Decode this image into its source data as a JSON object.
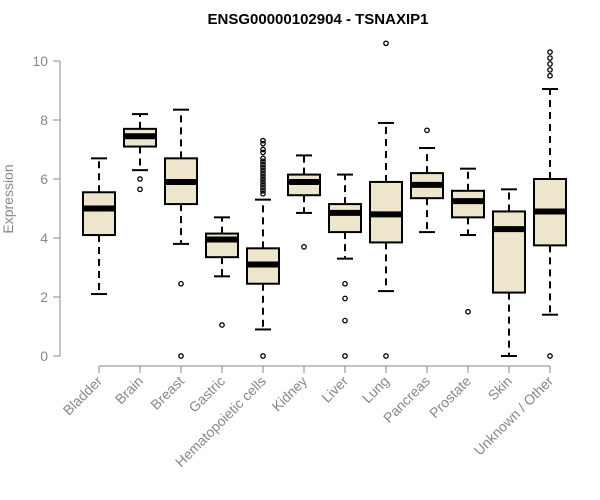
{
  "chart_data": {
    "type": "boxplot",
    "title": "ENSG00000102904 - TSNAXIP1",
    "xlabel": "",
    "ylabel": "Expression",
    "ylim": [
      0,
      10.5
    ],
    "yticks": [
      0,
      2,
      4,
      6,
      8,
      10
    ],
    "box_fill": "#ede6cd",
    "categories": [
      "Bladder",
      "Brain",
      "Breast",
      "Gastric",
      "Hematopoietic cells",
      "Kidney",
      "Liver",
      "Lung",
      "Pancreas",
      "Prostate",
      "Skin",
      "Unknown / Other"
    ],
    "boxes": [
      {
        "min": 2.1,
        "q1": 4.1,
        "median": 5.0,
        "q3": 5.55,
        "max": 6.7,
        "outliers": []
      },
      {
        "min": 6.3,
        "q1": 7.1,
        "median": 7.45,
        "q3": 7.7,
        "max": 8.2,
        "outliers": [
          6.0,
          5.65
        ]
      },
      {
        "min": 3.8,
        "q1": 5.15,
        "median": 5.9,
        "q3": 6.7,
        "max": 8.35,
        "outliers": [
          2.45,
          0.0
        ]
      },
      {
        "min": 2.7,
        "q1": 3.35,
        "median": 3.95,
        "q3": 4.15,
        "max": 4.7,
        "outliers": [
          1.05
        ]
      },
      {
        "min": 0.9,
        "q1": 2.45,
        "median": 3.1,
        "q3": 3.65,
        "max": 5.3,
        "outliers": [
          7.3,
          7.2,
          7.0,
          6.9,
          6.7,
          6.6,
          6.5,
          6.4,
          6.3,
          6.2,
          6.1,
          6.0,
          5.9,
          5.8,
          5.7,
          5.6,
          5.5,
          0.0
        ]
      },
      {
        "min": 4.85,
        "q1": 5.45,
        "median": 5.9,
        "q3": 6.15,
        "max": 6.8,
        "outliers": [
          3.7
        ]
      },
      {
        "min": 3.3,
        "q1": 4.2,
        "median": 4.85,
        "q3": 5.15,
        "max": 6.15,
        "outliers": [
          2.45,
          1.95,
          1.2,
          0.0
        ]
      },
      {
        "min": 2.2,
        "q1": 3.85,
        "median": 4.8,
        "q3": 5.9,
        "max": 7.9,
        "outliers": [
          10.6,
          0.0
        ]
      },
      {
        "min": 4.2,
        "q1": 5.35,
        "median": 5.8,
        "q3": 6.2,
        "max": 7.05,
        "outliers": [
          7.65
        ]
      },
      {
        "min": 4.1,
        "q1": 4.7,
        "median": 5.25,
        "q3": 5.6,
        "max": 6.35,
        "outliers": [
          1.5
        ]
      },
      {
        "min": 0.0,
        "q1": 2.15,
        "median": 4.3,
        "q3": 4.9,
        "max": 5.65,
        "outliers": []
      },
      {
        "min": 1.4,
        "q1": 3.75,
        "median": 4.9,
        "q3": 6.0,
        "max": 9.05,
        "outliers": [
          10.3,
          10.1,
          9.9,
          9.7,
          9.5,
          0.0
        ]
      }
    ]
  }
}
